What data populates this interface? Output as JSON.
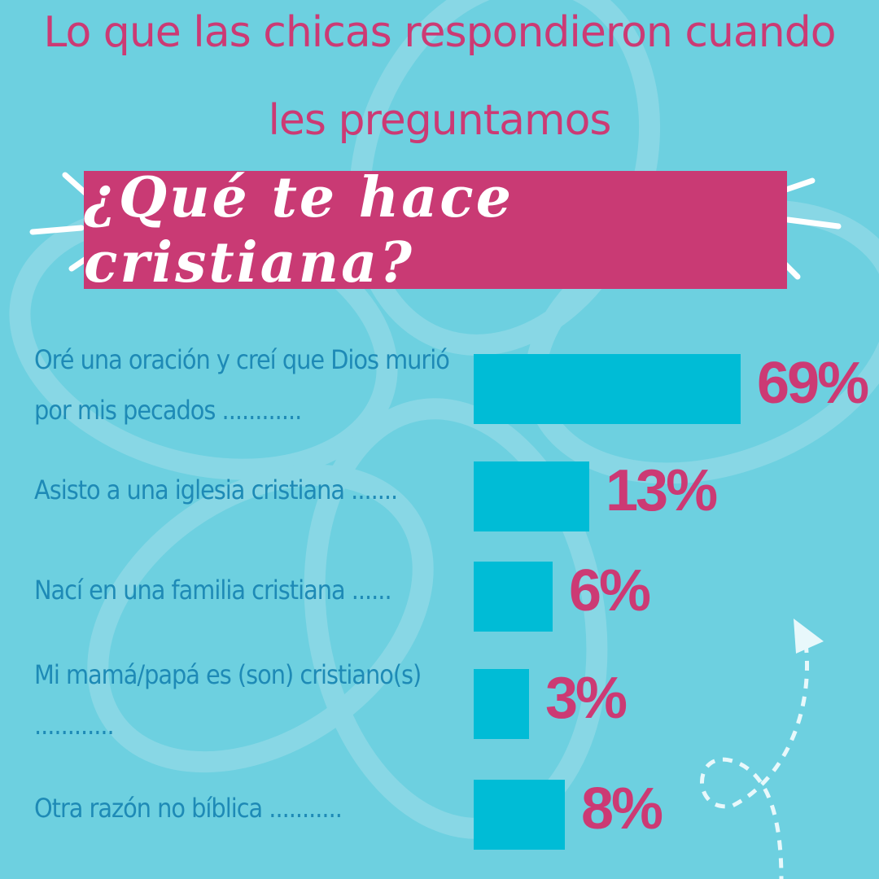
{
  "title_line1": "Lo que las chicas respondieron cuando",
  "title_line2": "les preguntamos",
  "question": "¿Qué te hace cristiana?",
  "colors": {
    "background": "#6dd0e0",
    "bar": "#00bcd6",
    "accent": "#c93a74",
    "label": "#1e8ab6"
  },
  "chart_data": {
    "type": "bar",
    "orientation": "horizontal",
    "title": "¿Qué te hace cristiana?",
    "categories": [
      "Oré una oración y creí que Dios murió por mis pecados ............",
      "Asisto a una iglesia cristiana .......",
      "Nací en una familia cristiana ......",
      "Mi mamá/papá es (son) cristiano(s) ............",
      "Otra razón no bíblica ..........."
    ],
    "values": [
      69,
      13,
      6,
      3,
      8
    ],
    "value_labels": [
      "69%",
      "13%",
      "6%",
      "3%",
      "8%"
    ],
    "unit": "%"
  }
}
